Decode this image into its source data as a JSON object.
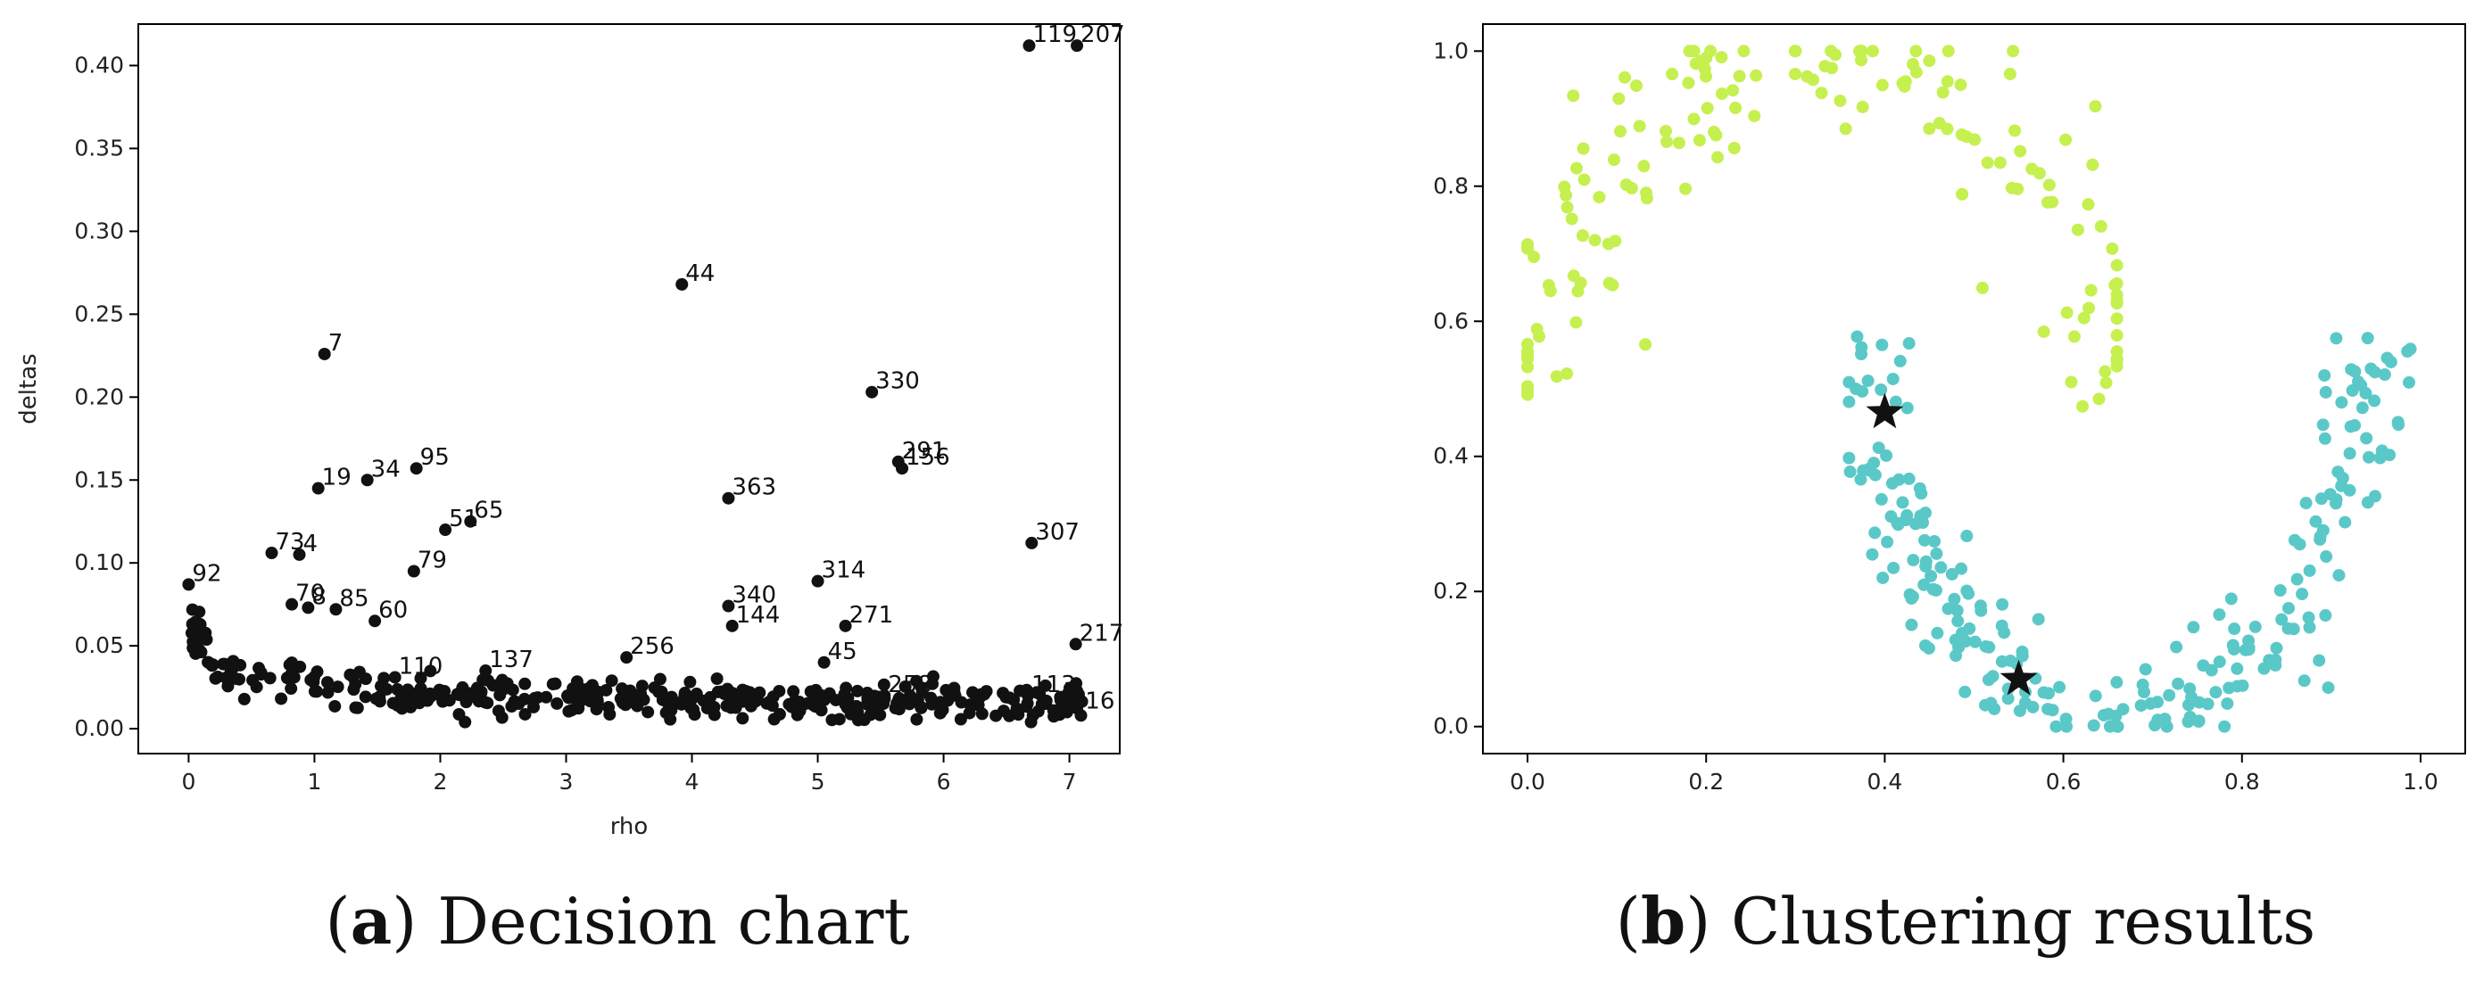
{
  "captions": [
    {
      "letter": "a",
      "text": " Decision chart"
    },
    {
      "letter": "b",
      "text": " Clustering results"
    }
  ],
  "chart_data": [
    {
      "type": "scatter",
      "title": "",
      "xlabel": "rho",
      "ylabel": "deltas",
      "xlim": [
        -0.4,
        7.4
      ],
      "ylim": [
        -0.015,
        0.425
      ],
      "xticks": [
        0,
        1,
        2,
        3,
        4,
        5,
        6,
        7
      ],
      "yticks": [
        0.0,
        0.05,
        0.1,
        0.15,
        0.2,
        0.25,
        0.3,
        0.35,
        0.4
      ],
      "ytick_labels": [
        "0.00",
        "0.05",
        "0.10",
        "0.15",
        "0.20",
        "0.25",
        "0.30",
        "0.35",
        "0.40"
      ],
      "grid": false,
      "marker_color": "#111111",
      "labeled_points": [
        {
          "label": "119",
          "x": 6.68,
          "y": 0.412
        },
        {
          "label": "207",
          "x": 7.06,
          "y": 0.412
        },
        {
          "label": "44",
          "x": 3.92,
          "y": 0.268
        },
        {
          "label": "7",
          "x": 1.08,
          "y": 0.226
        },
        {
          "label": "330",
          "x": 5.43,
          "y": 0.203
        },
        {
          "label": "291",
          "x": 5.64,
          "y": 0.161
        },
        {
          "label": "156",
          "x": 5.67,
          "y": 0.157
        },
        {
          "label": "95",
          "x": 1.81,
          "y": 0.157
        },
        {
          "label": "34",
          "x": 1.42,
          "y": 0.15
        },
        {
          "label": "19",
          "x": 1.03,
          "y": 0.145
        },
        {
          "label": "363",
          "x": 4.29,
          "y": 0.139
        },
        {
          "label": "65",
          "x": 2.24,
          "y": 0.125
        },
        {
          "label": "51",
          "x": 2.04,
          "y": 0.12
        },
        {
          "label": "307",
          "x": 6.7,
          "y": 0.112
        },
        {
          "label": "73",
          "x": 0.66,
          "y": 0.106
        },
        {
          "label": "4",
          "x": 0.88,
          "y": 0.105
        },
        {
          "label": "79",
          "x": 1.79,
          "y": 0.095
        },
        {
          "label": "314",
          "x": 5.0,
          "y": 0.089
        },
        {
          "label": "92",
          "x": 0.0,
          "y": 0.087
        },
        {
          "label": "340",
          "x": 4.29,
          "y": 0.074
        },
        {
          "label": "70",
          "x": 0.82,
          "y": 0.075
        },
        {
          "label": "8",
          "x": 0.95,
          "y": 0.073
        },
        {
          "label": "85",
          "x": 1.17,
          "y": 0.072
        },
        {
          "label": "60",
          "x": 1.48,
          "y": 0.065
        },
        {
          "label": "144",
          "x": 4.32,
          "y": 0.062
        },
        {
          "label": "271",
          "x": 5.22,
          "y": 0.062
        },
        {
          "label": "217",
          "x": 7.05,
          "y": 0.051
        },
        {
          "label": "45",
          "x": 5.05,
          "y": 0.04
        },
        {
          "label": "256",
          "x": 3.48,
          "y": 0.043
        },
        {
          "label": "110",
          "x": 1.64,
          "y": 0.031
        },
        {
          "label": "137",
          "x": 2.36,
          "y": 0.035
        },
        {
          "label": "258",
          "x": 5.53,
          "y": 0.02
        },
        {
          "label": "113",
          "x": 6.67,
          "y": 0.02
        },
        {
          "label": "116",
          "x": 6.98,
          "y": 0.01
        }
      ]
    },
    {
      "type": "scatter",
      "title": "",
      "xlabel": "",
      "ylabel": "",
      "xlim": [
        -0.05,
        1.05
      ],
      "ylim": [
        -0.04,
        1.04
      ],
      "xticks": [
        0.0,
        0.2,
        0.4,
        0.6,
        0.8,
        1.0
      ],
      "yticks": [
        0.0,
        0.2,
        0.4,
        0.6,
        0.8,
        1.0
      ],
      "grid": false,
      "clusters": [
        {
          "color": "#c5f04f",
          "shape": "upper moon",
          "approx_points": 160
        },
        {
          "color": "#5bc8c8",
          "shape": "lower moon",
          "approx_points": 240
        }
      ],
      "centers": [
        {
          "x": 0.4,
          "y": 0.465,
          "marker": "star"
        },
        {
          "x": 0.55,
          "y": 0.07,
          "marker": "star"
        }
      ]
    }
  ]
}
